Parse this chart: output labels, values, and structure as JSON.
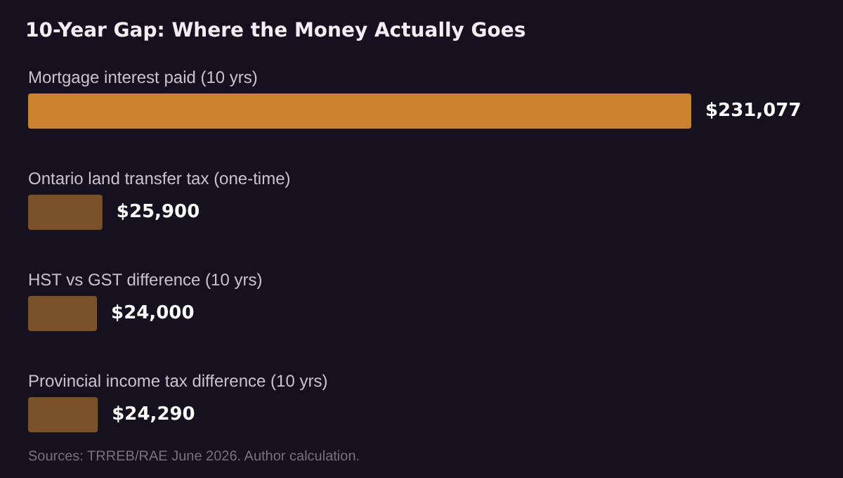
{
  "chart_data": {
    "type": "bar",
    "orientation": "horizontal",
    "title": "10-Year Gap: Where the Money Actually Goes",
    "categories": [
      "Mortgage interest paid (10 yrs)",
      "Ontario land transfer tax (one-time)",
      "HST vs GST difference (10 yrs)",
      "Provincial income tax difference (10 yrs)"
    ],
    "values": [
      231077,
      25900,
      24000,
      24290
    ],
    "colors": [
      "#c8832c",
      "#7a5228",
      "#7a5228",
      "#7a5228"
    ],
    "value_labels": [
      "$231,077",
      "$25,900",
      "$24,000",
      "$24,290"
    ],
    "annotations": [
      "Sources: TRREB/RAE June 2026. Author calculation."
    ]
  }
}
